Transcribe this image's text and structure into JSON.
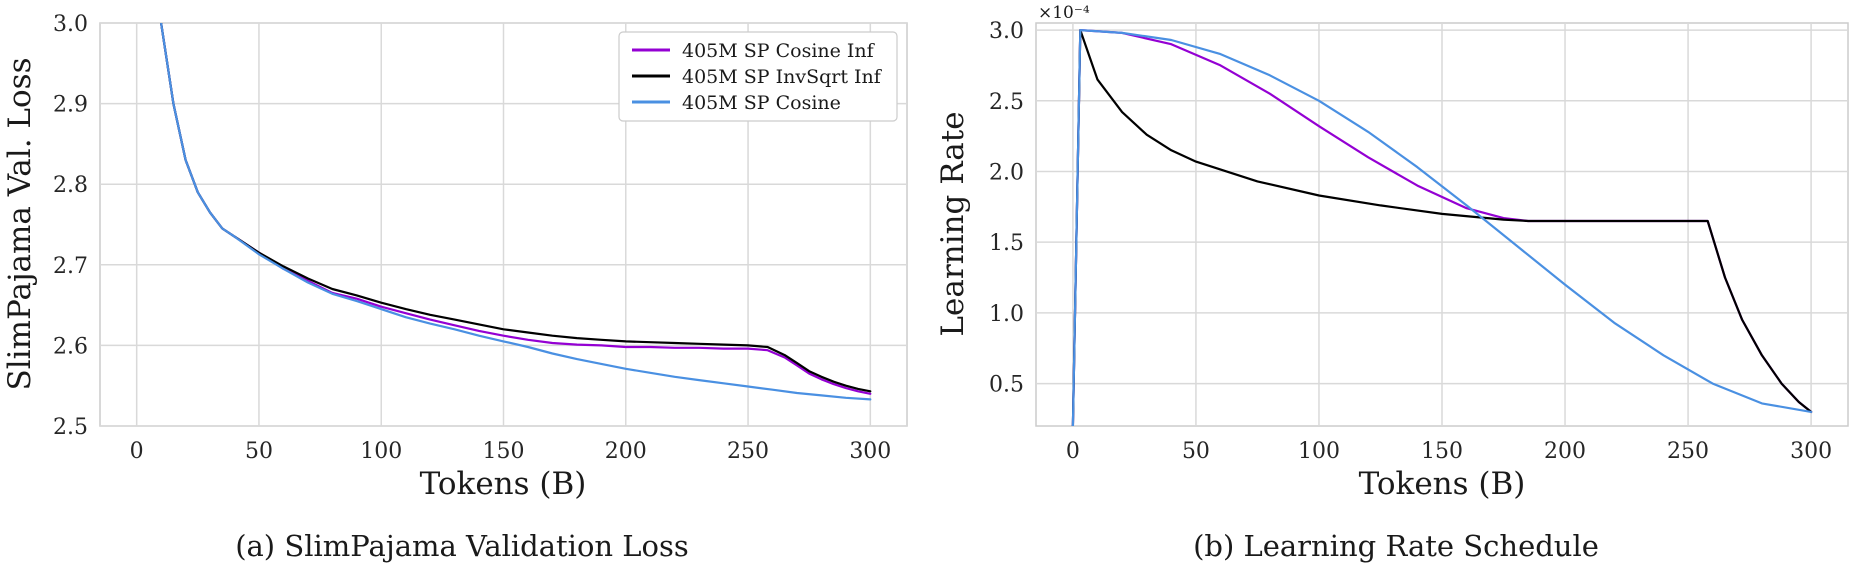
{
  "chart_data": [
    {
      "type": "line",
      "caption": "(a) SlimPajama Validation Loss",
      "xlabel": "Tokens (B)",
      "ylabel": "SlimPajama Val. Loss",
      "xlim": [
        -15,
        315
      ],
      "ylim": [
        2.5,
        3.0
      ],
      "xticks": [
        0,
        50,
        100,
        150,
        200,
        250,
        300
      ],
      "yticks": [
        2.5,
        2.6,
        2.7,
        2.8,
        2.9,
        3.0
      ],
      "xtick_labels": [
        "0",
        "50",
        "100",
        "150",
        "200",
        "250",
        "300"
      ],
      "ytick_labels": [
        "2.5",
        "2.6",
        "2.7",
        "2.8",
        "2.9",
        "3.0"
      ],
      "grid": true,
      "legend_position": "top-right",
      "series": [
        {
          "name": "405M SP Cosine Inf",
          "color": "#9400d3",
          "x": [
            10,
            15,
            20,
            25,
            30,
            35,
            40,
            50,
            60,
            70,
            80,
            90,
            100,
            110,
            120,
            130,
            140,
            150,
            160,
            170,
            180,
            190,
            200,
            210,
            220,
            230,
            240,
            250,
            258,
            265,
            270,
            275,
            280,
            285,
            290,
            295,
            300
          ],
          "y": [
            3.0,
            2.9,
            2.83,
            2.79,
            2.765,
            2.745,
            2.735,
            2.715,
            2.695,
            2.68,
            2.665,
            2.658,
            2.648,
            2.64,
            2.632,
            2.625,
            2.618,
            2.612,
            2.607,
            2.603,
            2.601,
            2.6,
            2.598,
            2.598,
            2.597,
            2.597,
            2.596,
            2.596,
            2.594,
            2.585,
            2.575,
            2.565,
            2.558,
            2.552,
            2.547,
            2.543,
            2.54
          ]
        },
        {
          "name": "405M SP InvSqrt Inf",
          "color": "#000000",
          "x": [
            10,
            15,
            20,
            25,
            30,
            35,
            40,
            50,
            60,
            70,
            80,
            90,
            100,
            110,
            120,
            130,
            140,
            150,
            160,
            170,
            180,
            190,
            200,
            210,
            220,
            230,
            240,
            250,
            258,
            265,
            270,
            275,
            280,
            285,
            290,
            295,
            300
          ],
          "y": [
            3.0,
            2.9,
            2.83,
            2.79,
            2.765,
            2.745,
            2.735,
            2.715,
            2.698,
            2.683,
            2.67,
            2.662,
            2.653,
            2.645,
            2.638,
            2.632,
            2.626,
            2.62,
            2.616,
            2.612,
            2.609,
            2.607,
            2.605,
            2.604,
            2.603,
            2.602,
            2.601,
            2.6,
            2.598,
            2.588,
            2.578,
            2.568,
            2.561,
            2.555,
            2.55,
            2.546,
            2.543
          ]
        },
        {
          "name": "405M SP Cosine",
          "color": "#4a90e2",
          "x": [
            10,
            15,
            20,
            25,
            30,
            35,
            40,
            50,
            60,
            70,
            80,
            90,
            100,
            110,
            120,
            130,
            140,
            150,
            160,
            170,
            180,
            190,
            200,
            210,
            220,
            230,
            240,
            250,
            260,
            270,
            280,
            290,
            300
          ],
          "y": [
            3.0,
            2.9,
            2.83,
            2.79,
            2.765,
            2.745,
            2.735,
            2.713,
            2.695,
            2.678,
            2.664,
            2.655,
            2.645,
            2.635,
            2.627,
            2.62,
            2.612,
            2.605,
            2.598,
            2.59,
            2.583,
            2.577,
            2.571,
            2.566,
            2.561,
            2.557,
            2.553,
            2.549,
            2.545,
            2.541,
            2.538,
            2.535,
            2.533
          ]
        }
      ]
    },
    {
      "type": "line",
      "caption": "(b) Learning Rate Schedule",
      "xlabel": "Tokens (B)",
      "ylabel": "Learning Rate",
      "scale_label": "×10⁻⁴",
      "xlim": [
        -15,
        315
      ],
      "ylim": [
        0.2,
        3.05
      ],
      "xticks": [
        0,
        50,
        100,
        150,
        200,
        250,
        300
      ],
      "yticks": [
        0.5,
        1.0,
        1.5,
        2.0,
        2.5,
        3.0
      ],
      "xtick_labels": [
        "0",
        "50",
        "100",
        "150",
        "200",
        "250",
        "300"
      ],
      "ytick_labels": [
        "0.5",
        "1.0",
        "1.5",
        "2.0",
        "2.5",
        "3.0"
      ],
      "grid": true,
      "series": [
        {
          "name": "405M SP Cosine Inf",
          "color": "#9400d3",
          "x": [
            0,
            3,
            20,
            40,
            60,
            80,
            100,
            120,
            140,
            160,
            175,
            185,
            258,
            265,
            272,
            280,
            288,
            295,
            300
          ],
          "y": [
            0.2,
            3.0,
            2.98,
            2.9,
            2.75,
            2.55,
            2.32,
            2.1,
            1.9,
            1.74,
            1.67,
            1.65,
            1.65,
            1.25,
            0.95,
            0.7,
            0.5,
            0.37,
            0.3
          ]
        },
        {
          "name": "405M SP InvSqrt Inf",
          "color": "#000000",
          "x": [
            0,
            3,
            10,
            20,
            30,
            40,
            50,
            75,
            100,
            125,
            150,
            175,
            185,
            258,
            265,
            272,
            280,
            288,
            295,
            300
          ],
          "y": [
            0.2,
            3.0,
            2.65,
            2.42,
            2.26,
            2.15,
            2.07,
            1.93,
            1.83,
            1.76,
            1.7,
            1.66,
            1.65,
            1.65,
            1.25,
            0.95,
            0.7,
            0.5,
            0.37,
            0.3
          ]
        },
        {
          "name": "405M SP Cosine",
          "color": "#4a90e2",
          "x": [
            0,
            3,
            20,
            40,
            60,
            80,
            100,
            120,
            140,
            160,
            180,
            200,
            220,
            240,
            260,
            280,
            300
          ],
          "y": [
            0.2,
            3.0,
            2.98,
            2.93,
            2.83,
            2.68,
            2.5,
            2.28,
            2.03,
            1.76,
            1.48,
            1.2,
            0.93,
            0.7,
            0.5,
            0.36,
            0.3
          ]
        }
      ]
    }
  ]
}
